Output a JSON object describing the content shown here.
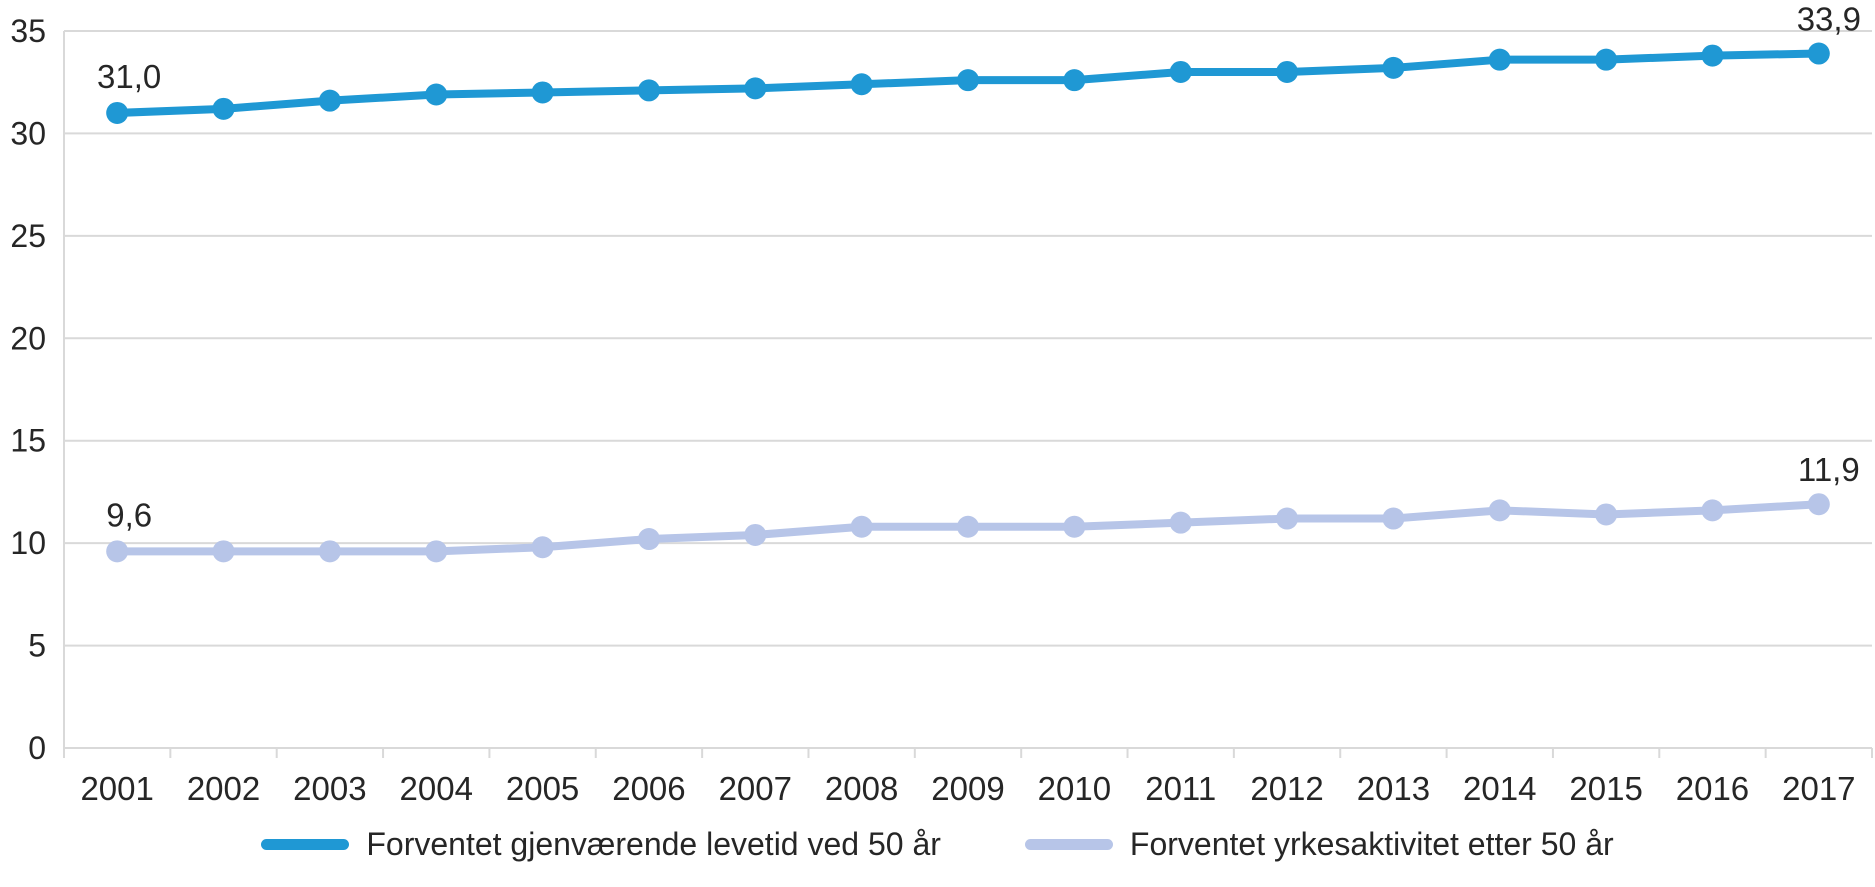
{
  "chart_data": {
    "type": "line",
    "title": "",
    "x": [
      "2001",
      "2002",
      "2003",
      "2004",
      "2005",
      "2006",
      "2007",
      "2008",
      "2009",
      "2010",
      "2011",
      "2012",
      "2013",
      "2014",
      "2015",
      "2016",
      "2017"
    ],
    "ylim": [
      0,
      35
    ],
    "ytick_step": 5,
    "ytick_labels": [
      "0",
      "5",
      "10",
      "15",
      "20",
      "25",
      "30",
      "35"
    ],
    "grid": true,
    "legend_position": "bottom",
    "gridline_color": "#d9d9d9",
    "axis_text_color": "#262626",
    "series": [
      {
        "name": "Forventet gjenværende levetid ved 50 år",
        "color": "#1f98d4",
        "values": [
          31.0,
          31.2,
          31.6,
          31.9,
          32.0,
          32.1,
          32.2,
          32.4,
          32.6,
          32.6,
          33.0,
          33.0,
          33.2,
          33.6,
          33.6,
          33.8,
          33.9
        ],
        "endpoint_labels": {
          "first": "31,0",
          "last": "33,9"
        }
      },
      {
        "name": "Forventet yrkesaktivitet etter 50 år",
        "color": "#b7c5e8",
        "values": [
          9.6,
          9.6,
          9.6,
          9.6,
          9.8,
          10.2,
          10.4,
          10.8,
          10.8,
          10.8,
          11.0,
          11.2,
          11.2,
          11.6,
          11.4,
          11.6,
          11.9
        ],
        "endpoint_labels": {
          "first": "9,6",
          "last": "11,9"
        }
      }
    ]
  }
}
